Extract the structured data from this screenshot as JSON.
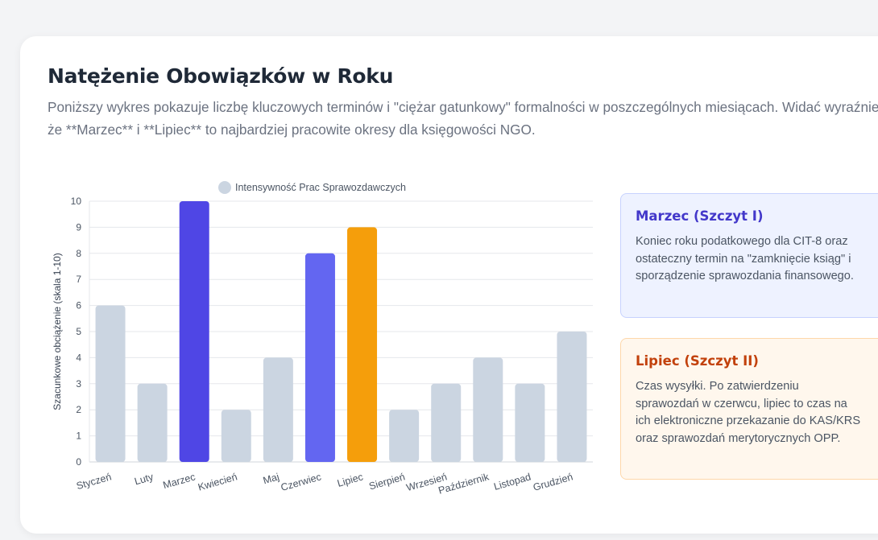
{
  "header": {
    "title": "Natężenie Obowiązków w Roku",
    "description": "Poniższy wykres pokazuje liczbę kluczowych terminów i \"ciężar gatunkowy\" formalności w poszczególnych miesiącach. Widać wyraźnie, że **Marzec** i **Lipiec** to najbardziej pracowite okresy dla księgowości NGO."
  },
  "chart_data": {
    "type": "bar",
    "title": "",
    "xlabel": "",
    "ylabel": "Szacunkowe obciążenie (skala 1-10)",
    "ylim": [
      0,
      10
    ],
    "yticks": [
      0,
      1,
      2,
      3,
      4,
      5,
      6,
      7,
      8,
      9,
      10
    ],
    "grid": true,
    "legend_position": "top",
    "legend_color": "#cbd5e1",
    "categories": [
      "Styczeń",
      "Luty",
      "Marzec",
      "Kwiecień",
      "Maj",
      "Czerwiec",
      "Lipiec",
      "Sierpień",
      "Wrzesień",
      "Październik",
      "Listopad",
      "Grudzień"
    ],
    "series": [
      {
        "name": "Intensywność Prac Sprawozdawczych",
        "values": [
          6,
          3,
          10,
          2,
          4,
          8,
          9,
          2,
          3,
          4,
          3,
          5
        ],
        "colors": [
          "#cbd5e1",
          "#cbd5e1",
          "#4f46e5",
          "#cbd5e1",
          "#cbd5e1",
          "#6366f1",
          "#f59e0b",
          "#cbd5e1",
          "#cbd5e1",
          "#cbd5e1",
          "#cbd5e1",
          "#cbd5e1"
        ]
      }
    ]
  },
  "info_boxes": [
    {
      "title": "Marzec (Szczyt I)",
      "text": "Koniec roku podatkowego dla CIT-8 oraz ostateczny termin na \"zamknięcie ksiąg\" i sporządzenie sprawozdania finansowego."
    },
    {
      "title": "Lipiec (Szczyt II)",
      "text": "Czas wysyłki. Po zatwierdzeniu sprawozdań w czerwcu, lipiec to czas na ich elektroniczne przekazanie do KAS/KRS oraz sprawozdań merytorycznych OPP."
    }
  ]
}
